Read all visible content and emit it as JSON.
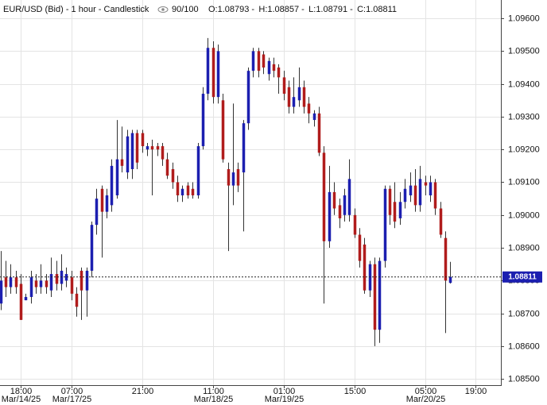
{
  "chart_data": {
    "type": "candlestick",
    "title": "EUR/USD (Bid) - 1 hour - Candlestick",
    "bar_count": "90/100",
    "ohlc_labels": [
      "O:1.08793",
      "H:1.08857",
      "L:1.08791",
      "C:1.08811"
    ],
    "last_price": {
      "value": 1.08811,
      "label": "1.08811"
    },
    "up_color": "#1c1fb0",
    "down_color": "#b01c1c",
    "grid": true,
    "open": [
      1.0873,
      1.0881,
      1.0878,
      1.0881,
      1.0879,
      1.0874,
      1.0875,
      1.088,
      1.0878,
      1.088,
      1.0877,
      1.0882,
      1.0879,
      1.088,
      1.0881,
      1.0876,
      1.0883,
      1.0877,
      1.0883,
      1.0897,
      1.0908,
      1.0901,
      1.0903,
      1.0906,
      1.0917,
      1.0913,
      1.0914,
      1.0925,
      1.0925,
      1.092,
      1.0921,
      1.0921,
      1.0921,
      1.0917,
      1.0914,
      1.091,
      1.0906,
      1.0909,
      1.0908,
      1.0906,
      1.0921,
      1.0937,
      1.0951,
      1.0936,
      1.0935,
      1.0914,
      1.0909,
      1.0914,
      1.0913,
      1.0928,
      1.0944,
      1.095,
      1.0949,
      1.0943,
      1.0946,
      1.0945,
      1.0942,
      1.0939,
      1.0933,
      1.0935,
      1.0939,
      1.0934,
      1.0929,
      1.0931,
      1.0919,
      1.0892,
      1.0907,
      1.0903,
      1.09,
      1.09,
      1.09,
      1.0894,
      1.0891,
      1.0877,
      1.0885,
      1.0865,
      1.0886,
      1.0908,
      1.0904,
      1.0899,
      1.0904,
      1.0906,
      1.0909,
      1.0903,
      1.091,
      1.0906,
      1.091,
      1.0902,
      1.0893,
      1.08793
    ],
    "high": [
      1.0889,
      1.0886,
      1.0885,
      1.0883,
      1.0882,
      1.0876,
      1.0883,
      1.0882,
      1.0885,
      1.0882,
      1.0887,
      1.0886,
      1.0888,
      1.0884,
      1.0883,
      1.0878,
      1.0884,
      1.0884,
      1.0898,
      1.0908,
      1.0909,
      1.0908,
      1.0917,
      1.0929,
      1.0927,
      1.0926,
      1.0926,
      1.0926,
      1.0926,
      1.0922,
      1.0923,
      1.0922,
      1.0922,
      1.0919,
      1.0916,
      1.0912,
      1.0909,
      1.091,
      1.091,
      1.0922,
      1.0939,
      1.0954,
      1.0953,
      1.0952,
      1.0937,
      1.0916,
      1.0934,
      1.0916,
      1.0929,
      1.0945,
      1.0951,
      1.0951,
      1.095,
      1.0948,
      1.0948,
      1.0946,
      1.0944,
      1.0941,
      1.0942,
      1.0945,
      1.0941,
      1.0936,
      1.0932,
      1.0933,
      1.0921,
      1.0915,
      1.091,
      1.0905,
      1.0908,
      1.0917,
      1.0902,
      1.0896,
      1.0893,
      1.0886,
      1.0887,
      1.0887,
      1.0909,
      1.0909,
      1.091,
      1.0907,
      1.0911,
      1.0913,
      1.0914,
      1.0915,
      1.0912,
      1.0912,
      1.0911,
      1.0904,
      1.0895,
      1.08857
    ],
    "low": [
      1.0871,
      1.0875,
      1.0876,
      1.0876,
      1.0868,
      1.0874,
      1.0873,
      1.0876,
      1.0876,
      1.0876,
      1.0875,
      1.0877,
      1.0877,
      1.0878,
      1.0874,
      1.0869,
      1.0868,
      1.0869,
      1.0881,
      1.0894,
      1.0887,
      1.0899,
      1.0901,
      1.0905,
      1.0913,
      1.0911,
      1.0911,
      1.0914,
      1.0919,
      1.0918,
      1.0906,
      1.0918,
      1.0915,
      1.0911,
      1.0908,
      1.0904,
      1.0904,
      1.0905,
      1.0905,
      1.0905,
      1.092,
      1.0935,
      1.0934,
      1.0934,
      1.0916,
      1.0889,
      1.0903,
      1.0907,
      1.0895,
      1.0926,
      1.0942,
      1.0942,
      1.0943,
      1.0941,
      1.0942,
      1.0937,
      1.0935,
      1.0931,
      1.0931,
      1.0933,
      1.0931,
      1.0928,
      1.0927,
      1.0918,
      1.0873,
      1.089,
      1.09,
      1.0896,
      1.0898,
      1.0898,
      1.0893,
      1.0884,
      1.0876,
      1.0875,
      1.086,
      1.0861,
      1.0884,
      1.0897,
      1.0896,
      1.0897,
      1.0902,
      1.0904,
      1.0901,
      1.0901,
      1.0906,
      1.0904,
      1.09,
      1.0893,
      1.0864,
      1.08791
    ],
    "close": [
      1.088,
      1.0878,
      1.0881,
      1.0878,
      1.0868,
      1.0875,
      1.0881,
      1.0878,
      1.088,
      1.0878,
      1.0882,
      1.0879,
      1.0883,
      1.0882,
      1.0876,
      1.0872,
      1.0877,
      1.0883,
      1.0897,
      1.0905,
      1.0901,
      1.0906,
      1.0915,
      1.0917,
      1.0915,
      1.0924,
      1.0925,
      1.0916,
      1.0921,
      1.0921,
      1.092,
      1.092,
      1.0917,
      1.0912,
      1.091,
      1.0906,
      1.0908,
      1.0906,
      1.0906,
      1.0921,
      1.0937,
      1.0951,
      1.0936,
      1.095,
      1.0917,
      1.0909,
      1.0913,
      1.0909,
      1.0928,
      1.0944,
      1.095,
      1.0944,
      1.0945,
      1.0947,
      1.0944,
      1.0942,
      1.0937,
      1.0933,
      1.0936,
      1.0939,
      1.0933,
      1.0931,
      1.0931,
      1.0919,
      1.0892,
      1.0907,
      1.0902,
      1.0899,
      1.0906,
      1.0911,
      1.0894,
      1.0886,
      1.0877,
      1.0885,
      1.0865,
      1.0886,
      1.0908,
      1.09,
      1.0898,
      1.0904,
      1.0908,
      1.0909,
      1.0903,
      1.0911,
      1.0909,
      1.091,
      1.0902,
      1.0894,
      1.088,
      1.08811
    ],
    "xlim": [
      -0.1,
      99
    ],
    "xticks": [
      {
        "value": 4,
        "label": "18:00"
      },
      {
        "value": 14,
        "label": "07:00"
      },
      {
        "value": 28,
        "label": "21:00"
      },
      {
        "value": 42,
        "label": "11:00"
      },
      {
        "value": 56,
        "label": "01:00"
      },
      {
        "value": 70,
        "label": "15:00"
      },
      {
        "value": 84,
        "label": "05:00"
      },
      {
        "value": 94,
        "label": "19:00"
      }
    ],
    "xtick_dates": [
      {
        "value": 4,
        "label": "Mar/14/25"
      },
      {
        "value": 14,
        "label": "Mar/17/25"
      },
      {
        "value": 42,
        "label": "Mar/18/25"
      },
      {
        "value": 56,
        "label": "Mar/19/25"
      },
      {
        "value": 84,
        "label": "Mar/20/25"
      }
    ],
    "ylim": [
      1.08481,
      1.09656
    ],
    "yticks": [
      {
        "value": 1.096,
        "label": "1.09600"
      },
      {
        "value": 1.095,
        "label": "1.09500"
      },
      {
        "value": 1.094,
        "label": "1.09400"
      },
      {
        "value": 1.093,
        "label": "1.09300"
      },
      {
        "value": 1.092,
        "label": "1.09200"
      },
      {
        "value": 1.091,
        "label": "1.09100"
      },
      {
        "value": 1.09,
        "label": "1.09000"
      },
      {
        "value": 1.089,
        "label": "1.08900"
      },
      {
        "value": 1.088,
        "label": "1.08800"
      },
      {
        "value": 1.087,
        "label": "1.08700"
      },
      {
        "value": 1.086,
        "label": "1.08600"
      },
      {
        "value": 1.085,
        "label": "1.08500"
      }
    ]
  }
}
